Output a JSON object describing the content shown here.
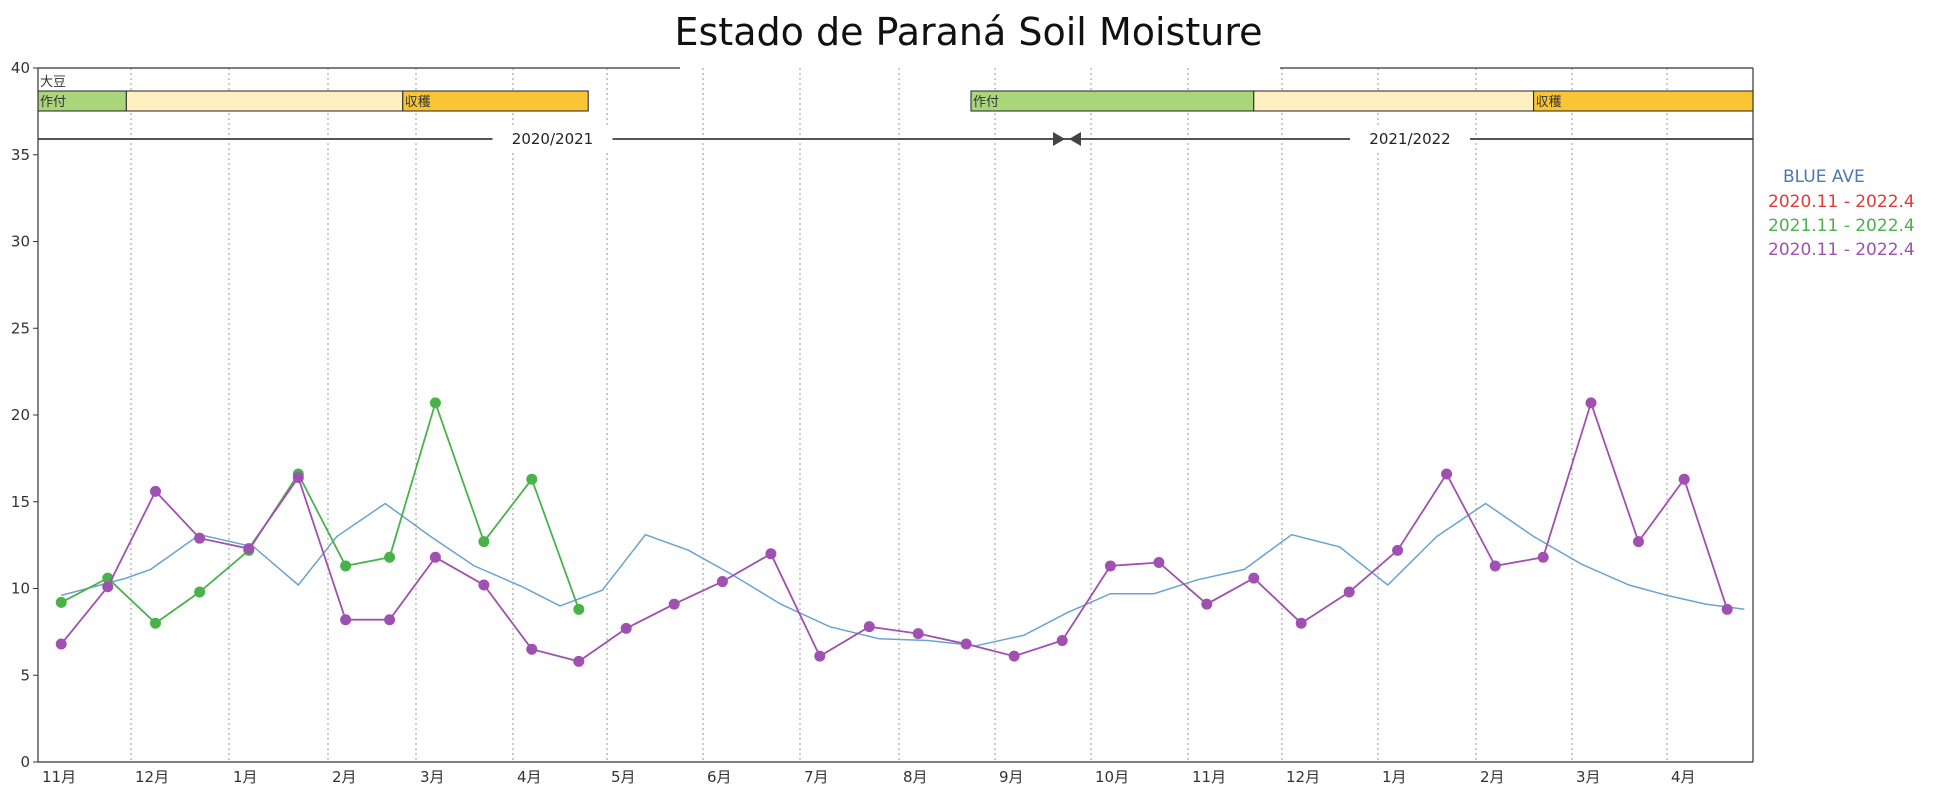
{
  "chart_data": {
    "type": "line",
    "title": "Estado de Paraná  Soil Moisture",
    "ylim": [
      0,
      40
    ],
    "yticks": [
      0,
      5,
      10,
      15,
      20,
      25,
      30,
      35,
      40
    ],
    "grid": "vertical dotted month separators",
    "month_labels": [
      "11月",
      "12月",
      "1月",
      "2月",
      "3月",
      "4月",
      "5月",
      "6月",
      "7月",
      "8月",
      "9月",
      "10月",
      "11月",
      "12月",
      "1月",
      "2月",
      "3月",
      "4月"
    ],
    "crop": {
      "label": "大豆",
      "stages": [
        {
          "label": "作付",
          "start": 0,
          "end": 0.95,
          "color": "#a9d67a"
        },
        {
          "label": "",
          "start": 0.95,
          "end": 3.85,
          "color": "#fff0c2"
        },
        {
          "label": "収穫",
          "start": 3.85,
          "end": 5.8,
          "color": "#f9c535"
        },
        {
          "label": "作付",
          "start": 9.75,
          "end": 12.7,
          "color": "#a9d67a"
        },
        {
          "label": "",
          "start": 12.7,
          "end": 15.6,
          "color": "#fff0c2"
        },
        {
          "label": "収穫",
          "start": 15.6,
          "end": 17.95,
          "color": "#f9c535"
        }
      ]
    },
    "seasons": [
      {
        "label": "2020/2021",
        "start": 0,
        "end": 10.75
      },
      {
        "label": "2021/2022",
        "start": 10.75,
        "end": 17.95
      }
    ],
    "legend": [
      {
        "label": "BLUE AVE",
        "color": "#4a78b0"
      },
      {
        "label": "2020.11 - 2022.4",
        "color": "#e03a3a"
      },
      {
        "label": "2021.11 - 2022.4",
        "color": "#4ab24a"
      },
      {
        "label": "2020.11 - 2022.4",
        "color": "#a050b0"
      }
    ],
    "series": [
      {
        "name": "BLUE AVE",
        "color": "#6aa3d0",
        "markers": false,
        "x": [
          0.25,
          0.95,
          1.2,
          1.7,
          2.25,
          2.7,
          3.1,
          3.65,
          4.15,
          4.6,
          5.1,
          5.5,
          5.95,
          6.4,
          6.85,
          7.3,
          7.8,
          8.3,
          8.8,
          9.3,
          9.8,
          10.3,
          10.75,
          11.2,
          11.65,
          12.1,
          12.6,
          13.1,
          13.6,
          14.1,
          14.6,
          15.1,
          15.6,
          16.1,
          16.6,
          17.0,
          17.45,
          17.9
        ],
        "y": [
          9.6,
          10.6,
          11.1,
          13.1,
          12.4,
          10.2,
          13.0,
          14.9,
          13.0,
          11.3,
          10.1,
          9.0,
          9.9,
          13.1,
          12.2,
          10.8,
          9.1,
          7.8,
          7.1,
          7.0,
          6.7,
          7.3,
          8.6,
          9.7,
          9.7,
          10.5,
          11.1,
          13.1,
          12.4,
          10.2,
          13.0,
          14.9,
          13.0,
          11.4,
          10.2,
          9.6,
          9.1,
          8.8
        ]
      },
      {
        "name": "2021.11 - 2022.4",
        "color": "#4ab24a",
        "markers": true,
        "x": [
          0.25,
          0.75,
          1.25,
          1.7,
          2.2,
          2.7,
          3.2,
          3.7,
          4.2,
          4.7,
          5.2,
          5.7
        ],
        "y": [
          9.2,
          10.6,
          8.0,
          9.8,
          12.2,
          16.6,
          11.3,
          11.8,
          20.7,
          12.7,
          16.3,
          8.8
        ]
      },
      {
        "name": "2020.11 - 2022.4",
        "color": "#a050b0",
        "markers": true,
        "x": [
          0.25,
          0.75,
          1.25,
          1.7,
          2.2,
          2.7,
          3.2,
          3.7,
          4.2,
          4.7,
          5.2,
          5.7,
          6.2,
          6.7,
          7.2,
          7.7,
          8.2,
          8.7,
          9.2,
          9.7,
          10.2,
          10.7,
          11.2,
          11.7,
          12.2,
          12.7,
          13.2,
          13.7,
          14.2,
          14.7,
          15.2,
          15.7,
          16.2,
          16.7,
          17.2,
          17.7
        ],
        "y": [
          6.8,
          10.1,
          15.6,
          12.9,
          12.3,
          16.4,
          8.2,
          8.2,
          11.8,
          10.2,
          6.5,
          5.8,
          7.7,
          9.1,
          10.4,
          12.0,
          6.1,
          7.8,
          7.4,
          6.8,
          6.1,
          7.0,
          11.3,
          11.5,
          9.1,
          10.6,
          8.0,
          9.8,
          12.2,
          16.6,
          11.3,
          11.8,
          20.7,
          12.7,
          16.3,
          8.8
        ]
      }
    ]
  }
}
